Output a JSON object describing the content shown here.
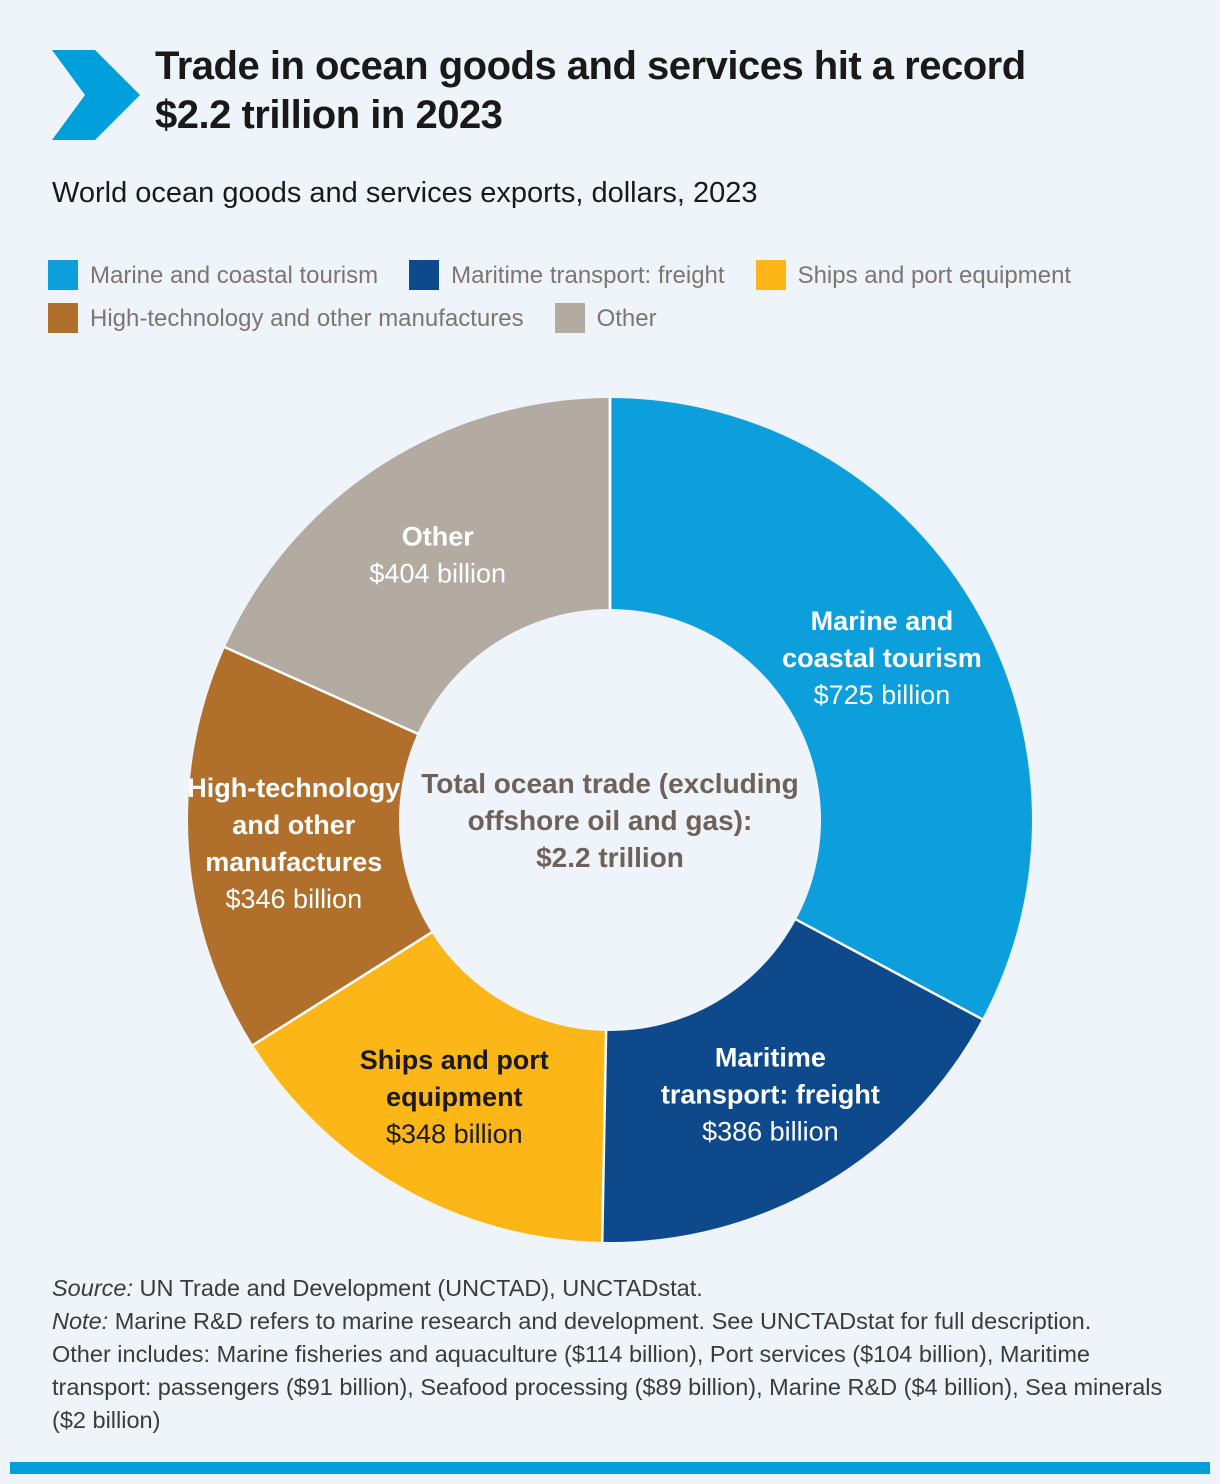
{
  "page": {
    "background": "#eff4fa",
    "accent_blue": "#009edb"
  },
  "header": {
    "title_line1": "Trade in ocean goods and services hit a record",
    "title_line2": "$2.2 trillion in 2023",
    "subtitle": "World ocean goods and services exports, dollars, 2023"
  },
  "legend": [
    {
      "label": "Marine and coastal tourism",
      "color": "#0d9fdc"
    },
    {
      "label": "Maritime transport: freight",
      "color": "#0e4a8b"
    },
    {
      "label": "Ships and port equipment",
      "color": "#fcb617"
    },
    {
      "label": "High-technology and other manufactures",
      "color": "#b06f2a"
    },
    {
      "label": "Other",
      "color": "#b3aaa2"
    }
  ],
  "chart_data": {
    "type": "pie",
    "subtype": "donut",
    "title": "World ocean goods and services exports, dollars, 2023",
    "units": "US dollars, billions",
    "total_value_trillions": 2.2,
    "center_label_lines": [
      "Total ocean trade (excluding",
      "offshore oil and gas):",
      "$2.2 trillion"
    ],
    "center_label_color": "#6d6159",
    "start_angle_deg": 0,
    "direction": "clockwise",
    "segments": [
      {
        "name": "Marine and coastal tourism",
        "value": 725,
        "value_label": "$725 billion",
        "label_lines": [
          "Marine and",
          "coastal tourism"
        ],
        "color": "#0d9fdc",
        "text_color": "#ffffff"
      },
      {
        "name": "Maritime transport: freight",
        "value": 386,
        "value_label": "$386 billion",
        "label_lines": [
          "Maritime",
          "transport: freight"
        ],
        "color": "#0e4a8b",
        "text_color": "#ffffff"
      },
      {
        "name": "Ships and port equipment",
        "value": 348,
        "value_label": "$348 billion",
        "label_lines": [
          "Ships and port",
          "equipment"
        ],
        "color": "#fcb617",
        "text_color": "#1a1a1a"
      },
      {
        "name": "High-technology and other manufactures",
        "value": 346,
        "value_label": "$346 billion",
        "label_lines": [
          "High-technology",
          "and other",
          "manufactures"
        ],
        "color": "#b06f2a",
        "text_color": "#ffffff"
      },
      {
        "name": "Other",
        "value": 404,
        "value_label": "$404 billion",
        "label_lines": [
          "Other"
        ],
        "color": "#b3aaa2",
        "text_color": "#ffffff"
      }
    ]
  },
  "footer": {
    "source_prefix": "Source:",
    "source_text": " UN Trade and Development (UNCTAD), UNCTADstat.",
    "note_prefix": "Note:",
    "note_text": " Marine R&D refers to marine research and development. See UNCTADstat for full description.",
    "other_includes": "Other includes: Marine fisheries and aquaculture ($114 billion), Port services ($104 billion), Maritime transport: passengers ($91 billion), Seafood processing ($89 billion), Marine R&D ($4 billion), Sea minerals ($2 billion)"
  }
}
